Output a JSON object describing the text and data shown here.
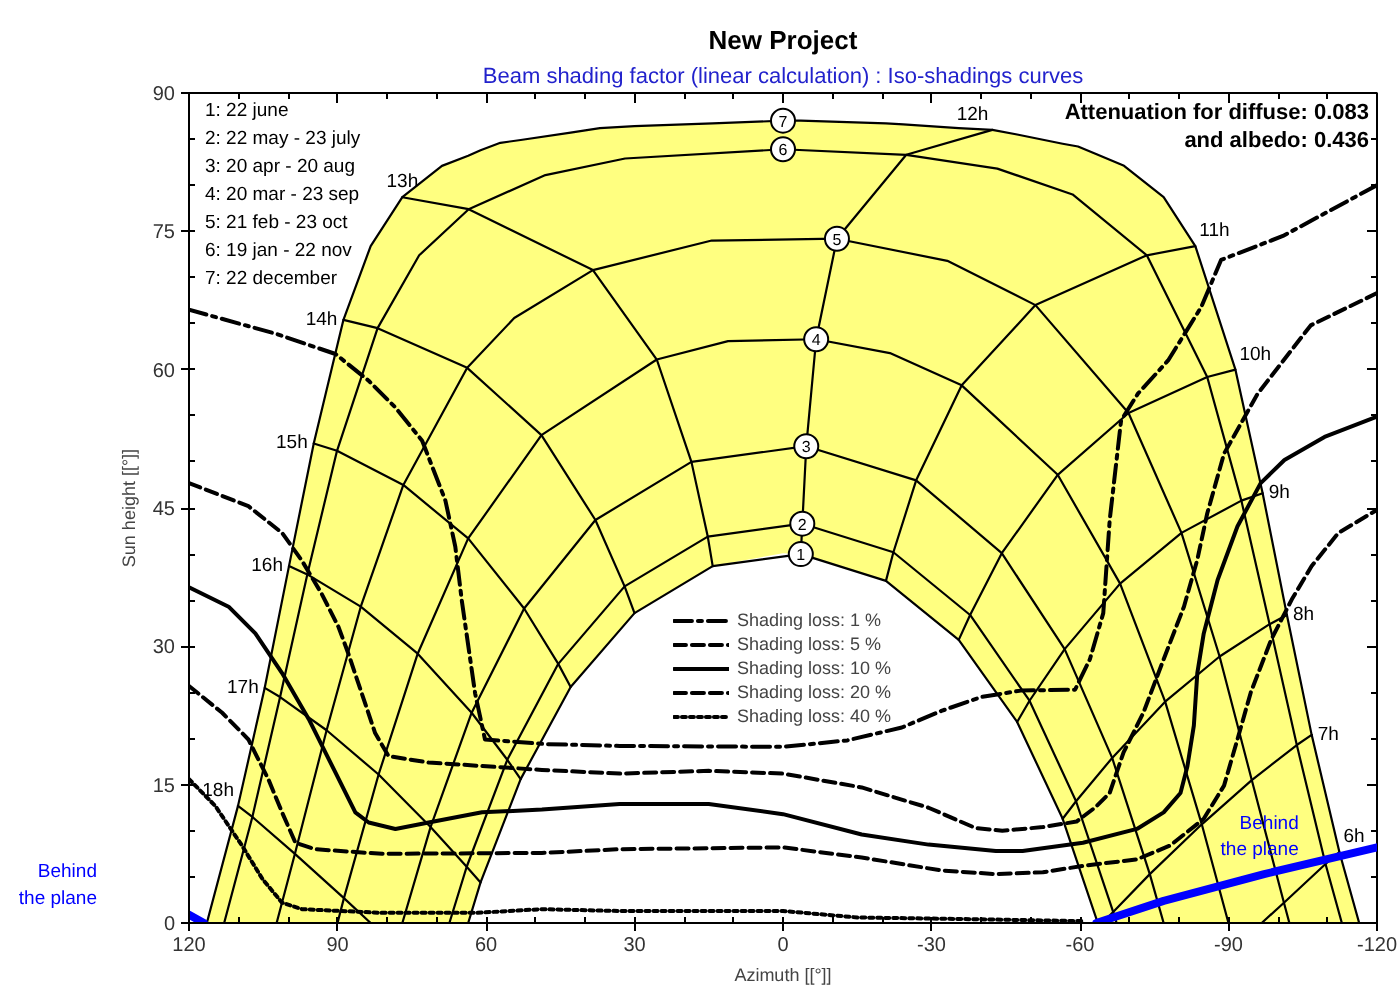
{
  "chart_data": {
    "type": "line",
    "title": "New Project",
    "subtitle": "Beam shading factor (linear calculation) : Iso-shadings curves",
    "xlabel": "Azimuth [[°]]",
    "ylabel": "Sun height [[°]]",
    "xlim": [
      120,
      -120
    ],
    "xticks": [
      120,
      90,
      60,
      30,
      0,
      -30,
      -60,
      -90,
      -120
    ],
    "ylim": [
      0,
      90
    ],
    "yticks": [
      0,
      15,
      30,
      45,
      60,
      75,
      90
    ],
    "legend": "bottom",
    "annotations": [
      "Attenuation for diffuse: 0.083",
      "and albedo: 0.436",
      "1: 22 june",
      "2: 22 may - 23 july",
      "3: 20 apr - 20 aug",
      "4: 20 mar - 23 sep",
      "5: 21 feb - 23 oct",
      "6: 19 jan - 22 nov",
      "7: 22 december",
      "Behind\nthe plane",
      {
        "text": "6h",
        "x": -112.4,
        "y": 7.7
      },
      {
        "text": "7h",
        "x": -106.8,
        "y": 20.4
      },
      {
        "text": "8h",
        "x": -101.8,
        "y": 33.4
      },
      {
        "text": "9h",
        "x": -96.9,
        "y": 46.6
      },
      {
        "text": "10h",
        "x": -91.4,
        "y": 60.0
      },
      {
        "text": "11h",
        "x": -83.3,
        "y": 73.4
      },
      {
        "text": "12h",
        "x": -42.3,
        "y": 86.0
      },
      {
        "text": "13h",
        "x": 76.9,
        "y": 78.7
      },
      {
        "text": "14h",
        "x": 88.8,
        "y": 65.4
      },
      {
        "text": "15h",
        "x": 94.8,
        "y": 52.0
      },
      {
        "text": "16h",
        "x": 99.8,
        "y": 38.7
      },
      {
        "text": "17h",
        "x": 104.7,
        "y": 25.5
      },
      {
        "text": "18h",
        "x": 110.1,
        "y": 12.7
      },
      {
        "text": "Behind\nthe plane",
        "x": -105,
        "y": 6.3
      }
    ],
    "series": [
      {
        "name": "1",
        "color": "#000000",
        "x": [
          -63.6,
          -56.5,
          -47.3,
          -35.5,
          -20.8,
          -3.6,
          14.2,
          30.0,
          42.9,
          53.0,
          61.1,
          63.6
        ],
        "values": [
          0,
          11.3,
          21.8,
          30.7,
          37.1,
          40.0,
          38.7,
          33.6,
          25.6,
          15.6,
          4.4,
          0
        ]
      },
      {
        "name": "2",
        "color": "#000000",
        "x": [
          -67.4,
          -66.7,
          -59.2,
          -49.8,
          -37.8,
          -22.3,
          -3.9,
          15.2,
          32.0,
          45.4,
          55.7,
          63.9,
          67.4
        ],
        "values": [
          0,
          1.2,
          13.2,
          24.1,
          33.4,
          40.2,
          43.3,
          41.9,
          36.5,
          28.1,
          17.7,
          6.1,
          0
        ]
      },
      {
        "name": "3",
        "color": "#000000",
        "x": [
          -76.9,
          -74.1,
          -66.5,
          -56.9,
          -44.2,
          -26.9,
          -4.7,
          18.5,
          37.9,
          52.3,
          62.9,
          71.2,
          76.9
        ],
        "values": [
          0,
          5.3,
          17.9,
          29.7,
          40.1,
          48.0,
          51.7,
          50.0,
          43.7,
          34.1,
          22.8,
          10.4,
          0
        ]
      },
      {
        "name": "4",
        "color": "#000000",
        "x": [
          -90,
          -84.6,
          -77.2,
          -68.1,
          -55.5,
          -36.1,
          -21.6,
          -6.7,
          11.1,
          25.5,
          48.8,
          63.6,
          73.8,
          81.7,
          88.7,
          90
        ],
        "values": [
          0,
          10.7,
          24.0,
          36.8,
          48.6,
          58.3,
          61.8,
          63.3,
          63.1,
          61.1,
          52.9,
          41.7,
          29.2,
          16.1,
          2.7,
          0
        ]
      },
      {
        "name": "5",
        "color": "#000000",
        "x": [
          -102.3,
          -101.2,
          -94.7,
          -88.2,
          -80.5,
          -69.8,
          -51.0,
          -33.2,
          -10.9,
          14.4,
          38.4,
          54.3,
          63.8,
          76.7,
          85.3,
          92.2,
          98.6,
          102.3
        ],
        "values": [
          0,
          2.2,
          15.5,
          28.9,
          42.3,
          55.3,
          67.0,
          71.8,
          74.2,
          74.0,
          70.8,
          65.6,
          60.2,
          47.5,
          34.3,
          20.9,
          7.5,
          0
        ]
      },
      {
        "name": "6",
        "color": "#000000",
        "x": [
          -112.9,
          -109.6,
          -103.8,
          -98.3,
          -92.6,
          -85.7,
          -73.5,
          -58.5,
          -43.3,
          -24.9,
          0,
          31.9,
          48,
          63.5,
          73.5,
          81.9,
          90.1,
          96.1,
          101.6,
          107.2,
          112.9
        ],
        "values": [
          0,
          6.4,
          19.3,
          32.4,
          45.8,
          59.2,
          72.4,
          79.0,
          81.8,
          83.3,
          83.9,
          82.9,
          81.1,
          77.4,
          72.4,
          64.5,
          51.2,
          37.8,
          24.5,
          11.5,
          0
        ]
      },
      {
        "name": "7",
        "color": "#000000",
        "x": [
          116.4,
          110.1,
          104.7,
          99.8,
          94.8,
          88.8,
          83.3,
          76.9,
          68.9,
          63.6,
          61.1,
          57.1,
          53,
          42.9,
          37,
          30,
          14.2,
          0,
          -3.6,
          -20.8,
          -24.3,
          -35.5,
          -42.3,
          -47.3,
          -56.5,
          -59.6,
          -63.6,
          -68.9,
          -76.9,
          -83.3,
          -91.4,
          -96.9,
          -101.8,
          -106.8,
          -112.4,
          -116.4
        ],
        "values": [
          0,
          12.7,
          25.5,
          38.7,
          52.0,
          65.4,
          73.4,
          78.7,
          82.1,
          83.2,
          83.8,
          84.6,
          84.9,
          85.7,
          86.2,
          86.4,
          86.7,
          87.0,
          87.0,
          86.7,
          86.6,
          86.2,
          86.0,
          85.5,
          84.5,
          84.2,
          83.3,
          82.1,
          78.7,
          73.4,
          60.0,
          46.6,
          33.4,
          20.4,
          7.7,
          0
        ],
        "lower": [
          0,
          0,
          0,
          0,
          0,
          0,
          0,
          0,
          0,
          0,
          4.4,
          9.9,
          15.6,
          25.6,
          29.3,
          33.6,
          38.7,
          40.1,
          40.0,
          37.1,
          35.6,
          30.7,
          25.6,
          21.8,
          11.3,
          6.4,
          0,
          0,
          0,
          0,
          0,
          0,
          0,
          0,
          0,
          0
        ],
        "upper": [
          0,
          12.7,
          25.5,
          38.7,
          52.0,
          65.4,
          73.4,
          78.7,
          82.1,
          83.2,
          83.8,
          84.6,
          84.9,
          85.7,
          86.2,
          86.4,
          86.7,
          87.0,
          87.0,
          86.7,
          86.6,
          86.2,
          86.0,
          85.5,
          84.5,
          84.2,
          83.3,
          82.1,
          78.7,
          73.4,
          60.0,
          46.6,
          33.4,
          20.4,
          7.7,
          0
        ]
      },
      {
        "color": "#000000",
        "x": [
          -96.7,
          -101.2,
          -109.6,
          -112.4
        ],
        "values": [
          0,
          2.2,
          6.4,
          7.7
        ]
      },
      {
        "color": "#000000",
        "x": [
          -64.5,
          -66.7,
          -74.1,
          -84.6,
          -94.7,
          -103.8,
          -106.8
        ],
        "values": [
          0,
          1.2,
          5.3,
          10.7,
          15.5,
          19.3,
          20.4
        ]
      },
      {
        "color": "#000000",
        "x": [
          -56.5,
          -59.2,
          -66.5,
          -77.2,
          -88.2,
          -98.3,
          -101.8
        ],
        "values": [
          11.3,
          13.2,
          17.9,
          24.0,
          28.9,
          32.4,
          33.4
        ]
      },
      {
        "color": "#000000",
        "x": [
          -47.3,
          -49.8,
          -56.9,
          -68.1,
          -80.5,
          -92.6,
          -96.9
        ],
        "values": [
          21.8,
          24.1,
          29.7,
          36.8,
          42.3,
          45.8,
          46.6
        ]
      },
      {
        "color": "#000000",
        "x": [
          -35.5,
          -37.8,
          -44.2,
          -55.5,
          -69.8,
          -85.7,
          -91.4
        ],
        "values": [
          30.7,
          33.4,
          40.1,
          48.6,
          55.3,
          59.2,
          60.0
        ]
      },
      {
        "color": "#000000",
        "x": [
          -20.8,
          -22.3,
          -26.9,
          -36.1,
          -51.0,
          -73.5,
          -83.3
        ],
        "values": [
          37.1,
          40.2,
          48.0,
          58.3,
          67.0,
          72.4,
          73.4
        ]
      },
      {
        "color": "#000000",
        "x": [
          -3.6,
          -3.9,
          -4.7,
          -6.7,
          -10.9,
          -24.9,
          -42.3
        ],
        "values": [
          40.0,
          43.3,
          51.7,
          63.3,
          74.2,
          83.3,
          86.0
        ]
      },
      {
        "color": "#000000",
        "x": [
          14.2,
          15.2,
          18.5,
          25.5,
          38.4,
          63.5,
          76.9
        ],
        "values": [
          38.7,
          41.9,
          50.0,
          61.1,
          70.8,
          77.4,
          78.7
        ]
      },
      {
        "color": "#000000",
        "x": [
          30.0,
          32.0,
          37.9,
          48.8,
          63.8,
          81.9,
          88.8
        ],
        "values": [
          33.6,
          36.5,
          43.7,
          52.9,
          60.2,
          64.5,
          65.4
        ]
      },
      {
        "color": "#000000",
        "x": [
          42.9,
          45.4,
          52.3,
          63.6,
          76.7,
          90.1,
          94.8
        ],
        "values": [
          25.6,
          28.1,
          34.1,
          41.7,
          47.5,
          51.2,
          52.0
        ]
      },
      {
        "color": "#000000",
        "x": [
          53.0,
          55.7,
          62.9,
          73.8,
          85.3,
          96.1,
          99.8
        ],
        "values": [
          15.6,
          17.7,
          22.8,
          29.2,
          34.3,
          37.8,
          38.7
        ]
      },
      {
        "color": "#000000",
        "x": [
          61.1,
          63.9,
          71.2,
          81.7,
          92.2,
          101.6,
          104.7
        ],
        "values": [
          4.4,
          6.1,
          10.4,
          16.1,
          20.9,
          24.5,
          25.5
        ]
      },
      {
        "color": "#000000",
        "x": [
          83.3,
          88.7,
          98.6,
          107.2,
          110.1
        ],
        "values": [
          0,
          2.7,
          7.5,
          11.5,
          12.7
        ]
      },
      {
        "name": "Shading loss: 1 %",
        "color": "#000000",
        "line_style": "dashdot",
        "x": [
          120,
          102.5,
          90.4,
          83.7,
          78.3,
          72.9,
          68.2,
          66.2,
          64.9,
          62.2,
          60.2,
          48,
          33,
          0,
          -13,
          -24,
          -32,
          -40,
          -48,
          -59,
          -62,
          -64.7,
          -66,
          -68.3,
          -71.7,
          -77.8,
          -84.5,
          -88.5,
          -101,
          -120
        ],
        "values": [
          66.5,
          63.9,
          61.7,
          58.8,
          55.9,
          52.3,
          45.8,
          40.8,
          35,
          24.9,
          19.9,
          19.4,
          19.2,
          19.1,
          19.8,
          21.2,
          23,
          24.5,
          25.2,
          25.3,
          28.6,
          33.6,
          43.7,
          54.5,
          57.4,
          61,
          66.8,
          71.9,
          74.5,
          80
        ]
      },
      {
        "name": "Shading loss: 5 %",
        "color": "#000000",
        "line_style": "dashed",
        "x": [
          120,
          108,
          101.2,
          97.2,
          93.2,
          89.8,
          87.8,
          85.1,
          82.4,
          79.7,
          71.6,
          48.7,
          33,
          15,
          0,
          -15.9,
          -29.4,
          -38.9,
          -44.3,
          -52.5,
          -59.3,
          -63,
          -66,
          -68.8,
          -72.8,
          -76.9,
          -81,
          -83.7,
          -85.7,
          -89.1,
          -95.9,
          -106.6,
          -120
        ],
        "values": [
          47.7,
          45.2,
          42.3,
          39.3,
          35.7,
          32.1,
          29.2,
          24.9,
          20.6,
          18.1,
          17.4,
          16.6,
          16.2,
          16.5,
          16.2,
          14.7,
          12.5,
          10.3,
          10,
          10.4,
          11,
          12.5,
          14.1,
          18.5,
          22.8,
          28.6,
          34.3,
          39.4,
          44.4,
          50.9,
          57.4,
          64.8,
          68.3
        ]
      },
      {
        "name": "Shading loss: 10 %",
        "color": "#000000",
        "line_style": "solid",
        "x": [
          120,
          112,
          106.6,
          101.2,
          95.8,
          90.4,
          86.4,
          83.7,
          78.3,
          71.6,
          60.8,
          48.7,
          33,
          15,
          0,
          -15.9,
          -29.4,
          -43,
          -48.4,
          -60.6,
          -71.5,
          -76.9,
          -80.3,
          -81.7,
          -83,
          -83.7,
          -85,
          -87.8,
          -91.8,
          -96.5,
          -101.3,
          -109.4,
          -120
        ],
        "values": [
          36.4,
          34.3,
          31.4,
          27.1,
          22.1,
          16.3,
          12,
          10.9,
          10.2,
          10.9,
          12,
          12.3,
          12.9,
          12.9,
          11.8,
          9.6,
          8.5,
          7.8,
          7.8,
          8.7,
          10.2,
          12,
          14.1,
          17,
          21.4,
          27.1,
          31.4,
          37.2,
          43,
          47.7,
          50.2,
          52.7,
          54.9
        ]
      },
      {
        "name": "Shading loss: 20 %",
        "color": "#000000",
        "line_style": "dashed",
        "x": [
          120,
          113.3,
          108,
          103.9,
          101.2,
          98.5,
          94.5,
          81,
          48.7,
          33,
          0,
          -15.9,
          -32,
          -43,
          -52.5,
          -60.6,
          -71.5,
          -78.2,
          -85,
          -89.1,
          -91.8,
          -94.5,
          -98.6,
          -102.8,
          -106.8,
          -112.2,
          -120
        ],
        "values": [
          25.7,
          22.8,
          19.9,
          15.5,
          12,
          8.7,
          8,
          7.5,
          7.6,
          8.0,
          8.2,
          7.1,
          5.7,
          5.3,
          5.5,
          6.2,
          6.9,
          8.4,
          11.3,
          14.9,
          19.9,
          25,
          30.7,
          35.1,
          38.7,
          42.3,
          44.8
        ]
      },
      {
        "name": "Shading loss: 40 %",
        "color": "#000000",
        "line_style": "dotted",
        "x": [
          120,
          114.7,
          109.3,
          105.2,
          101.2,
          97.2,
          81,
          62,
          48.7,
          33,
          0,
          -15,
          -40,
          -60.6
        ],
        "values": [
          15.6,
          12.7,
          8.4,
          4.8,
          2.2,
          1.5,
          1.1,
          1.1,
          1.5,
          1.3,
          1.3,
          0.6,
          0.4,
          0.2
        ]
      },
      {
        "color": "#0000ff",
        "line_style": "solid",
        "x": [
          120,
          117
        ],
        "values": [
          0.9,
          0
        ]
      },
      {
        "color": "#0000ff",
        "line_style": "solid",
        "x": [
          -63.3,
          -76.9,
          -97.2,
          -120
        ],
        "values": [
          0,
          2.4,
          5.3,
          8.2
        ]
      }
    ]
  }
}
